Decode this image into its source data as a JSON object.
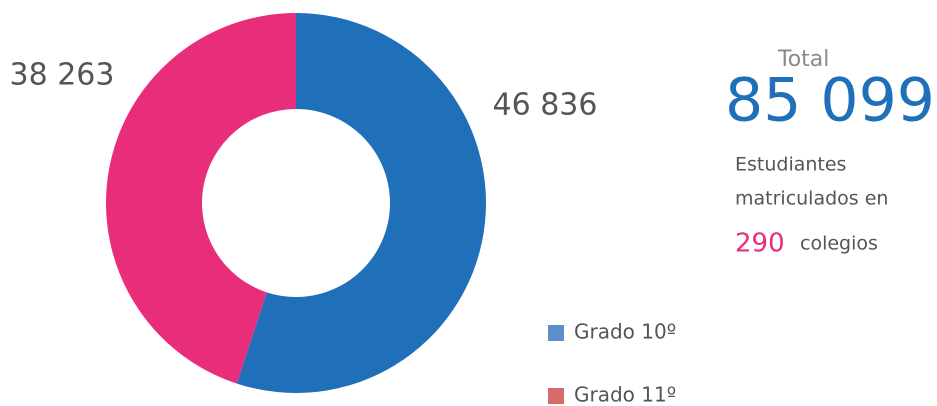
{
  "chart_data": {
    "type": "pie",
    "categories": [
      "Grado 10º",
      "Grado 11º"
    ],
    "values": [
      46836,
      38263
    ],
    "value_labels": [
      "46 836",
      "38 263"
    ],
    "colors": [
      "#1f70b8",
      "#e82e7b"
    ],
    "legend_colors": [
      "#5b8fc9",
      "#d66b6b"
    ]
  },
  "summary": {
    "title": "Total",
    "total": "85 099",
    "caption": [
      "Estudiantes",
      "matriculados en"
    ],
    "count": "290",
    "count_suffix": "colegios"
  }
}
